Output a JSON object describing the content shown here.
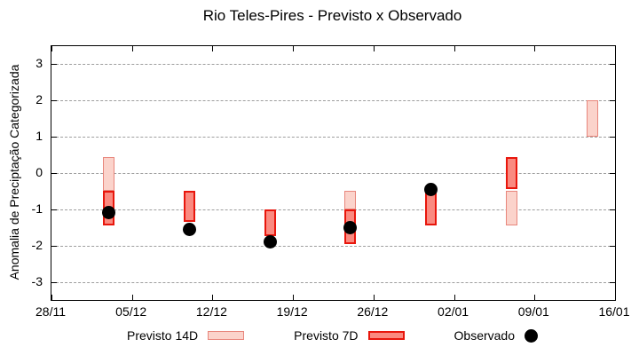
{
  "chart_data": {
    "type": "bar",
    "title": "Rio Teles-Pires - Previsto x Observado",
    "ylabel": "Anomalia de Preciptação Categorizada",
    "xlabel": "",
    "ylim": [
      -3.5,
      3.5
    ],
    "yticks": [
      -3,
      -2,
      -1,
      0,
      1,
      2,
      3
    ],
    "ytick_labels": [
      "-3",
      "-2",
      "-1",
      "0",
      "1",
      "2",
      "3"
    ],
    "x_day_range": [
      0,
      49
    ],
    "xtick_days": [
      0,
      7,
      14,
      21,
      28,
      35,
      42,
      49
    ],
    "xtick_labels": [
      "28/11",
      "05/12",
      "12/12",
      "19/12",
      "26/12",
      "02/01",
      "09/01",
      "16/01"
    ],
    "grid": "horizontal-dashed",
    "legend_position": "bottom-center",
    "series": [
      {
        "name": "Previsto 14D",
        "kind": "interval-bar"
      },
      {
        "name": "Previsto 7D",
        "kind": "interval-bar"
      },
      {
        "name": "Observado",
        "kind": "scatter"
      }
    ],
    "clusters": [
      {
        "x_day": 5,
        "previsto14": [
          -0.5,
          0.45
        ],
        "previsto7": [
          -1.45,
          -0.5
        ],
        "observado": -1.1
      },
      {
        "x_day": 12,
        "previsto14": null,
        "previsto7": [
          -1.35,
          -0.5
        ],
        "observado": -1.55
      },
      {
        "x_day": 19,
        "previsto14": null,
        "previsto7": [
          -1.75,
          -1.0
        ],
        "observado": -1.9
      },
      {
        "x_day": 26,
        "previsto14": [
          -1.0,
          -0.5
        ],
        "previsto7": [
          -1.95,
          -1.0
        ],
        "observado": -1.5
      },
      {
        "x_day": 33,
        "previsto14": null,
        "previsto7": [
          -1.45,
          -0.5
        ],
        "observado": -0.45
      },
      {
        "x_day": 40,
        "previsto14": [
          -1.45,
          -0.5
        ],
        "previsto7": [
          -0.45,
          0.45
        ],
        "observado": null
      },
      {
        "x_day": 47,
        "previsto14": [
          1.0,
          2.0
        ],
        "previsto7": null,
        "observado": null
      }
    ],
    "colors": {
      "previsto14_fill": "#fbd3cb",
      "previsto14_border": "#e8867c",
      "previsto7_fill": "#fa8a80",
      "previsto7_border": "#e8160c",
      "observado": "#000000",
      "grid": "#9e9e9e",
      "axis": "#000000"
    },
    "legend": {
      "previsto14_label": "Previsto 14D",
      "previsto7_label": "Previsto 7D",
      "observado_label": "Observado"
    }
  }
}
